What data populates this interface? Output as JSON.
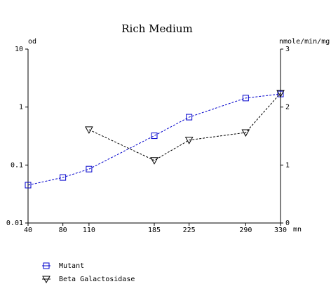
{
  "chart_data": {
    "type": "line",
    "title": "Rich Medium",
    "x_label": "mn",
    "y_label": "od",
    "y2_label": "nmole/min/mg",
    "x": [
      40,
      80,
      110,
      185,
      225,
      290,
      330
    ],
    "xlim": [
      40,
      330
    ],
    "xticks": [
      40,
      80,
      110,
      185,
      225,
      290,
      330
    ],
    "ylim": [
      0.01,
      10
    ],
    "yticks": [
      0.01,
      0.1,
      1,
      10
    ],
    "ylog": true,
    "y2lim": [
      0,
      3
    ],
    "y2ticks": [
      0,
      1,
      2,
      3
    ],
    "series": [
      {
        "name": "Mutant",
        "color": "#0000cc",
        "marker": "square",
        "values": [
          0.045,
          0.061,
          0.085,
          0.32,
          0.67,
          1.43,
          1.68
        ]
      },
      {
        "name": "Beta Galactosidase",
        "color": "#000000",
        "marker": "triangle-down",
        "axis": "y2",
        "values": [
          null,
          null,
          1.61,
          1.08,
          1.43,
          1.56,
          2.24
        ]
      }
    ]
  }
}
